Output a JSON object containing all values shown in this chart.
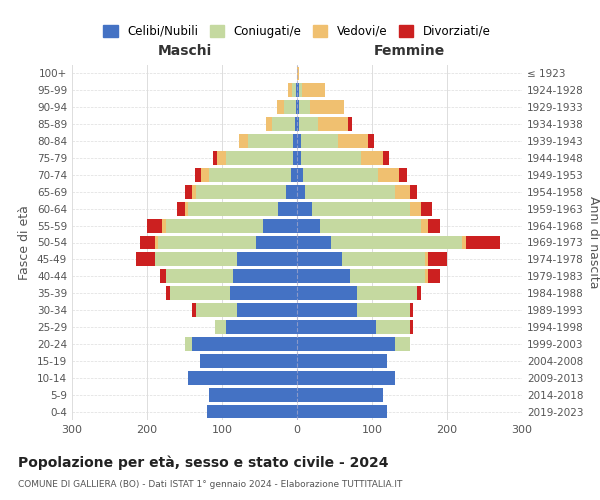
{
  "age_groups": [
    "0-4",
    "5-9",
    "10-14",
    "15-19",
    "20-24",
    "25-29",
    "30-34",
    "35-39",
    "40-44",
    "45-49",
    "50-54",
    "55-59",
    "60-64",
    "65-69",
    "70-74",
    "75-79",
    "80-84",
    "85-89",
    "90-94",
    "95-99",
    "100+"
  ],
  "birth_years": [
    "2019-2023",
    "2014-2018",
    "2009-2013",
    "2004-2008",
    "1999-2003",
    "1994-1998",
    "1989-1993",
    "1984-1988",
    "1979-1983",
    "1974-1978",
    "1969-1973",
    "1964-1968",
    "1959-1963",
    "1954-1958",
    "1949-1953",
    "1944-1948",
    "1939-1943",
    "1934-1938",
    "1929-1933",
    "1924-1928",
    "≤ 1923"
  ],
  "male": {
    "celibi": [
      120,
      118,
      145,
      130,
      140,
      95,
      80,
      90,
      85,
      80,
      55,
      45,
      25,
      15,
      8,
      5,
      5,
      3,
      2,
      2,
      0
    ],
    "coniugati": [
      0,
      0,
      0,
      0,
      10,
      15,
      55,
      80,
      90,
      110,
      130,
      130,
      120,
      120,
      110,
      90,
      60,
      30,
      15,
      5,
      0
    ],
    "vedovi": [
      0,
      0,
      0,
      0,
      0,
      0,
      0,
      0,
      0,
      0,
      5,
      5,
      5,
      5,
      10,
      12,
      12,
      8,
      10,
      5,
      0
    ],
    "divorziati": [
      0,
      0,
      0,
      0,
      0,
      0,
      5,
      5,
      8,
      25,
      20,
      20,
      10,
      10,
      8,
      5,
      0,
      0,
      0,
      0,
      0
    ]
  },
  "female": {
    "nubili": [
      120,
      115,
      130,
      120,
      130,
      105,
      80,
      80,
      70,
      60,
      45,
      30,
      20,
      10,
      8,
      5,
      5,
      3,
      2,
      2,
      0
    ],
    "coniugate": [
      0,
      0,
      0,
      0,
      20,
      45,
      70,
      80,
      100,
      110,
      175,
      135,
      130,
      120,
      100,
      80,
      50,
      25,
      15,
      5,
      0
    ],
    "vedove": [
      0,
      0,
      0,
      0,
      0,
      0,
      0,
      0,
      5,
      5,
      5,
      10,
      15,
      20,
      28,
      30,
      40,
      40,
      45,
      30,
      2
    ],
    "divorziate": [
      0,
      0,
      0,
      0,
      0,
      5,
      5,
      5,
      15,
      25,
      45,
      15,
      15,
      10,
      10,
      8,
      8,
      5,
      0,
      0,
      0
    ]
  },
  "colors": {
    "celibi_nubili": "#4472c4",
    "coniugati": "#c5d9a0",
    "vedovi": "#f0c070",
    "divorziati": "#cc2020"
  },
  "title": "Popolazione per età, sesso e stato civile - 2024",
  "subtitle": "COMUNE DI GALLIERA (BO) - Dati ISTAT 1° gennaio 2024 - Elaborazione TUTTITALIA.IT",
  "xlabel_left": "Maschi",
  "xlabel_right": "Femmine",
  "ylabel_left": "Fasce di età",
  "ylabel_right": "Anni di nascita",
  "xlim": 300,
  "legend_labels": [
    "Celibi/Nubili",
    "Coniugati/e",
    "Vedovi/e",
    "Divorziati/e"
  ],
  "background_color": "#ffffff",
  "grid_color": "#dddddd"
}
